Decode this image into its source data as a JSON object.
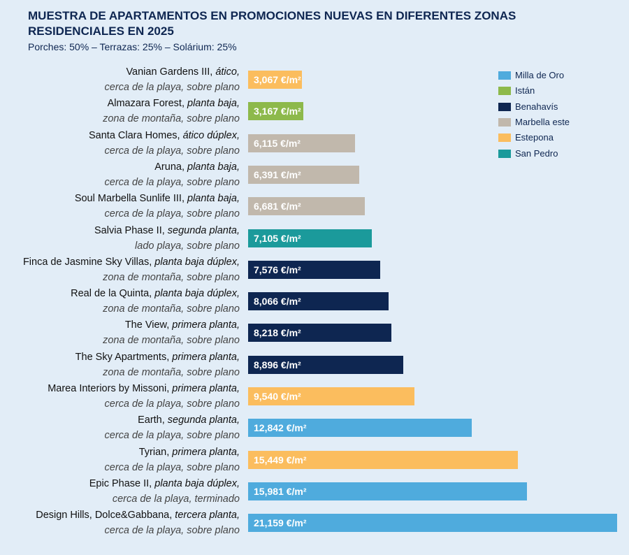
{
  "chart_data": {
    "type": "bar",
    "title": "MUESTRA DE APARTAMENTOS EN PROMOCIONES NUEVAS EN DIFERENTES ZONAS RESIDENCIALES EN 2025",
    "subtitle": "Porches: 50% – Terrazas: 25% – Solárium: 25%",
    "categories": [
      {
        "name": "Vanian Gardens III,",
        "unit": "ático,",
        "detail": "cerca de la playa, sobre plano"
      },
      {
        "name": "Almazara Forest,",
        "unit": "planta baja,",
        "detail": "zona de montaña, sobre plano"
      },
      {
        "name": "Santa Clara Homes,",
        "unit": "ático dúplex,",
        "detail": "cerca de la playa, sobre plano"
      },
      {
        "name": "Aruna,",
        "unit": "planta baja,",
        "detail": "cerca de la playa, sobre plano"
      },
      {
        "name": "Soul Marbella Sunlife III,",
        "unit": "planta baja,",
        "detail": "cerca de la playa, sobre plano"
      },
      {
        "name": "Salvia Phase II,",
        "unit": "segunda planta,",
        "detail": "lado playa, sobre plano"
      },
      {
        "name": "Finca de Jasmine Sky Villas,",
        "unit": "planta baja dúplex,",
        "detail": "zona de montaña, sobre plano"
      },
      {
        "name": "Real de la Quinta,",
        "unit": "planta baja dúplex,",
        "detail": "zona de montaña, sobre plano"
      },
      {
        "name": "The View,",
        "unit": "primera planta,",
        "detail": "zona de montaña, sobre plano"
      },
      {
        "name": "The Sky Apartments,",
        "unit": "primera planta,",
        "detail": "zona de montaña, sobre plano"
      },
      {
        "name": "Marea Interiors by Missoni,",
        "unit": "primera planta,",
        "detail": "cerca de la playa, sobre plano"
      },
      {
        "name": "Earth,",
        "unit": "segunda planta,",
        "detail": "cerca de la playa, sobre plano"
      },
      {
        "name": "Tyrian,",
        "unit": "primera planta,",
        "detail": "cerca de la playa, sobre plano"
      },
      {
        "name": "Epic Phase II,",
        "unit": "planta baja dúplex,",
        "detail": "cerca de la playa, terminado"
      },
      {
        "name": "Design Hills, Dolce&Gabbana,",
        "unit": "tercera planta,",
        "detail": "cerca de la playa, sobre plano"
      }
    ],
    "series": [
      {
        "name": "Milla de Oro",
        "color": "#4fabdd",
        "values": [
          null,
          null,
          null,
          null,
          null,
          null,
          null,
          null,
          null,
          null,
          null,
          12842,
          null,
          15981,
          21159
        ],
        "value_labels": [
          null,
          null,
          null,
          null,
          null,
          null,
          null,
          null,
          null,
          null,
          null,
          "12,842 €/m²",
          null,
          "15,981 €/m²",
          "21,159 €/m²"
        ]
      },
      {
        "name": "Istán",
        "color": "#8db94b",
        "values": [
          null,
          3167,
          null,
          null,
          null,
          null,
          null,
          null,
          null,
          null,
          null,
          null,
          null,
          null,
          null
        ],
        "value_labels": [
          null,
          "3,167 €/m²",
          null,
          null,
          null,
          null,
          null,
          null,
          null,
          null,
          null,
          null,
          null,
          null,
          null
        ]
      },
      {
        "name": "Benahavís",
        "color": "#0e2651",
        "values": [
          null,
          null,
          null,
          null,
          null,
          null,
          7576,
          8066,
          8218,
          8896,
          null,
          null,
          null,
          null,
          null
        ],
        "value_labels": [
          null,
          null,
          null,
          null,
          null,
          null,
          "7,576 €/m²",
          "8,066 €/m²",
          "8,218 €/m²",
          "8,896 €/m²",
          null,
          null,
          null,
          null,
          null
        ]
      },
      {
        "name": "Marbella este",
        "color": "#c1b8ac",
        "values": [
          null,
          null,
          6115,
          6391,
          6681,
          null,
          null,
          null,
          null,
          null,
          null,
          null,
          null,
          null,
          null
        ],
        "value_labels": [
          null,
          null,
          "6,115 €/m²",
          "6,391 €/m²",
          "6,681 €/m²",
          null,
          null,
          null,
          null,
          null,
          null,
          null,
          null,
          null,
          null
        ]
      },
      {
        "name": "Estepona",
        "color": "#fbbd5e",
        "values": [
          3067,
          null,
          null,
          null,
          null,
          null,
          null,
          null,
          null,
          null,
          9540,
          null,
          15449,
          null,
          null
        ],
        "value_labels": [
          "3,067 €/m²",
          null,
          null,
          null,
          null,
          null,
          null,
          null,
          null,
          null,
          "9,540 €/m²",
          null,
          "15,449 €/m²",
          null,
          null
        ]
      },
      {
        "name": "San Pedro",
        "color": "#1b9a9b",
        "values": [
          null,
          null,
          null,
          null,
          null,
          7105,
          null,
          null,
          null,
          null,
          null,
          null,
          null,
          null,
          null
        ],
        "value_labels": [
          null,
          null,
          null,
          null,
          null,
          "7,105 €/m²",
          null,
          null,
          null,
          null,
          null,
          null,
          null,
          null,
          null
        ]
      }
    ]
  }
}
